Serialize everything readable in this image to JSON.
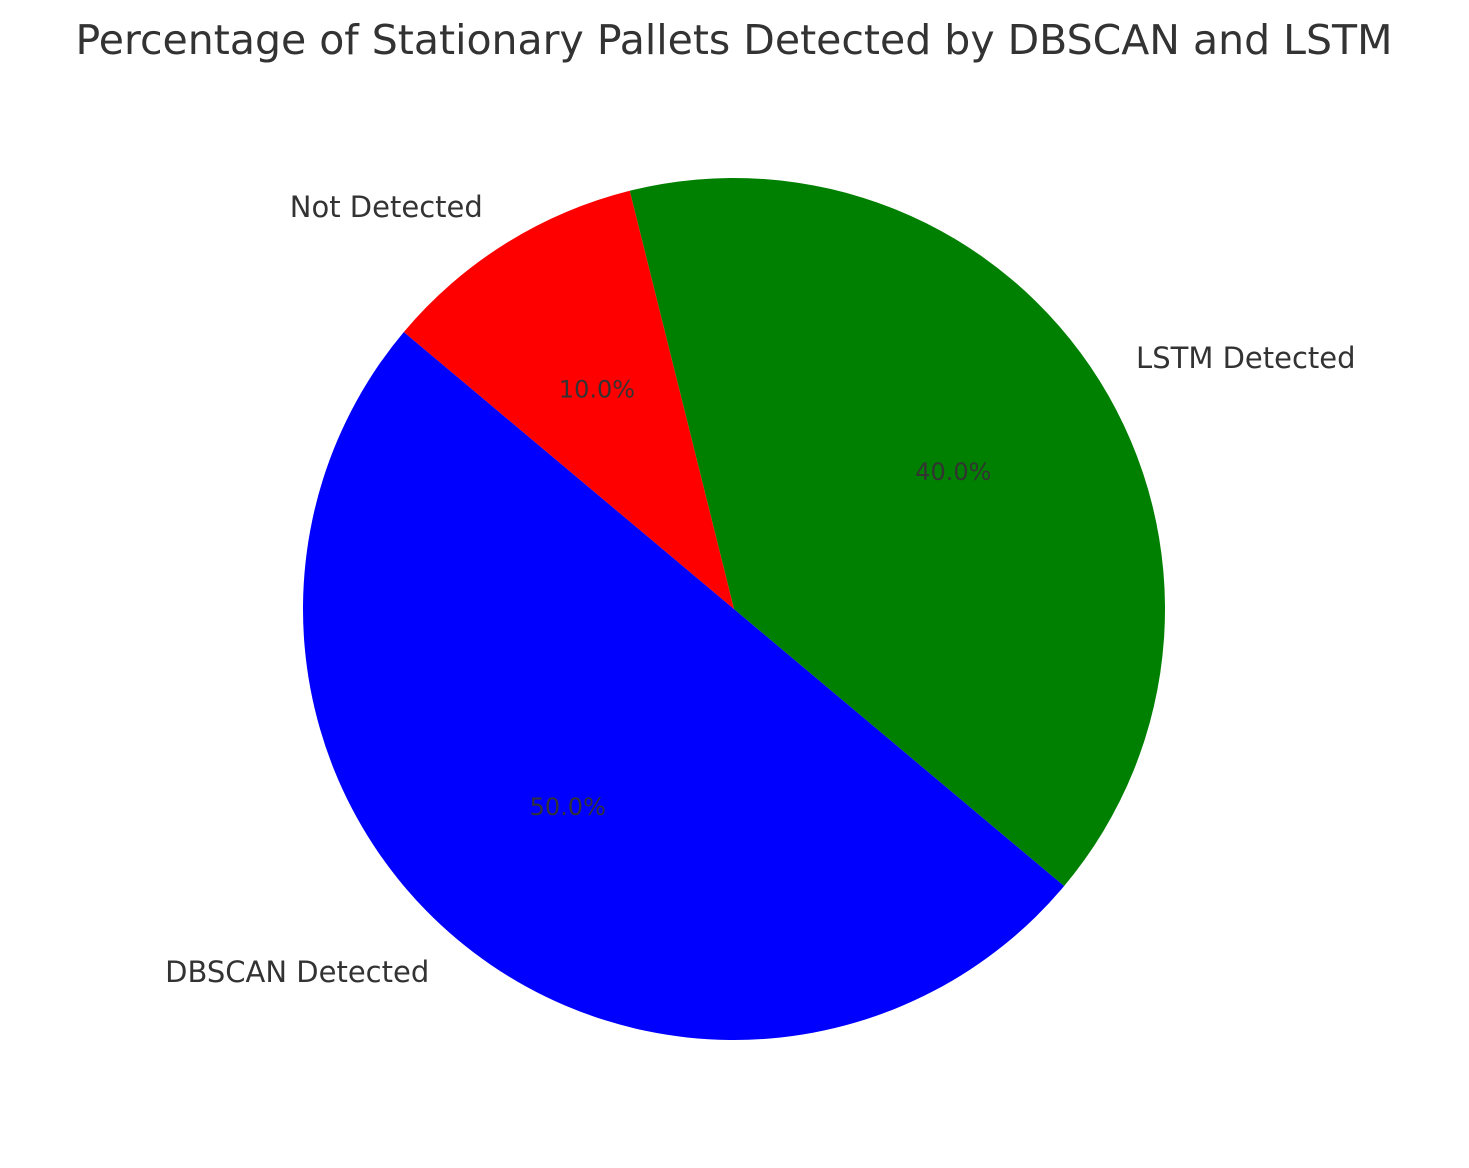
{
  "chart_data": {
    "type": "pie",
    "title": "Percentage of Stationary Pallets Detected by DBSCAN and LSTM",
    "start_angle_deg": 140,
    "direction": "counterclockwise",
    "slices": [
      {
        "label": "DBSCAN Detected",
        "value": 50,
        "pct_text": "50.0%",
        "color": "#0000ff"
      },
      {
        "label": "LSTM Detected",
        "value": 40,
        "pct_text": "40.0%",
        "color": "#008000"
      },
      {
        "label": "Not Detected",
        "value": 10,
        "pct_text": "10.0%",
        "color": "#ff0000"
      }
    ]
  }
}
